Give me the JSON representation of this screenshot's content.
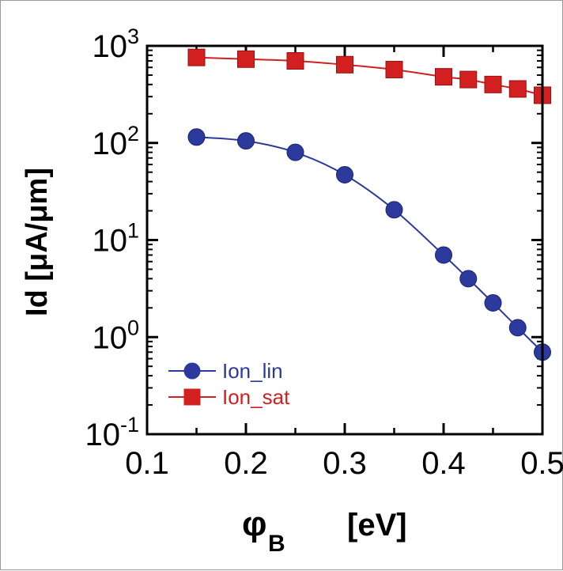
{
  "chart_data": {
    "type": "line",
    "title": "",
    "xlabel": "φ",
    "xlabel_sub": "B",
    "xlabel_unit": "[eV]",
    "ylabel": "Id  [μA/μm]",
    "xlim": [
      0.1,
      0.5
    ],
    "ylim": [
      0.1,
      1000
    ],
    "yscale": "log",
    "x_ticks": [
      "0.1",
      "0.2",
      "0.3",
      "0.4",
      "0.5"
    ],
    "y_ticks": [
      {
        "base": "10",
        "exp": "3"
      },
      {
        "base": "10",
        "exp": "2"
      },
      {
        "base": "10",
        "exp": "1"
      },
      {
        "base": "10",
        "exp": "0"
      },
      {
        "base": "10",
        "exp": "-1"
      }
    ],
    "legend_position": "bottom-left",
    "series": [
      {
        "name": "Ion_lin",
        "marker": "circle",
        "color": "#2b3a9c",
        "x": [
          0.15,
          0.2,
          0.25,
          0.3,
          0.35,
          0.4,
          0.425,
          0.45,
          0.475,
          0.5
        ],
        "y": [
          115,
          105,
          80,
          47,
          20.5,
          7.0,
          4.0,
          2.25,
          1.25,
          0.7
        ]
      },
      {
        "name": "Ion_sat",
        "marker": "square",
        "color": "#d21f1f",
        "x": [
          0.15,
          0.2,
          0.25,
          0.3,
          0.35,
          0.4,
          0.425,
          0.45,
          0.475,
          0.5
        ],
        "y": [
          760,
          730,
          700,
          640,
          570,
          480,
          450,
          400,
          360,
          310
        ]
      }
    ]
  }
}
